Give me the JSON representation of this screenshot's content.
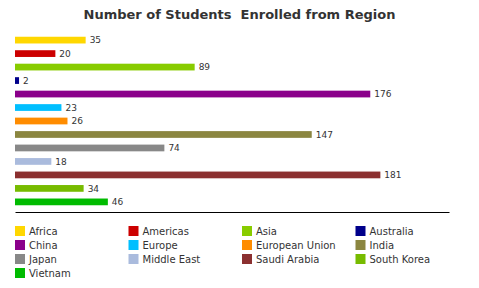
{
  "chart_data": {
    "type": "bar",
    "orientation": "horizontal",
    "title": "Number of Students  Enrolled from Region",
    "categories": [
      "Africa",
      "Americas",
      "Asia",
      "Australia",
      "China",
      "Europe",
      "European Union",
      "India",
      "Japan",
      "Middle East",
      "Saudi Arabia",
      "South Korea",
      "Vietnam"
    ],
    "values": [
      35,
      20,
      89,
      2,
      176,
      23,
      26,
      147,
      74,
      18,
      181,
      34,
      46
    ],
    "colors": [
      "#FFD700",
      "#CC0000",
      "#88CC00",
      "#00008B",
      "#8B008B",
      "#00BFFF",
      "#FF8C00",
      "#8B8640",
      "#888888",
      "#AABBDD",
      "#8B3030",
      "#77BB00",
      "#00BB00"
    ],
    "xlim": [
      0,
      215
    ],
    "data_labels": true,
    "tick_labels": false,
    "grid": false,
    "legend": "bottom"
  }
}
